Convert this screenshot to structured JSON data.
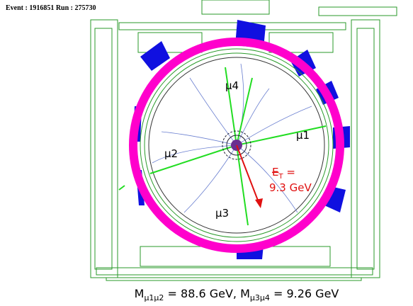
{
  "header": {
    "event": "Event : 1916851  Run : 275730"
  },
  "labels": {
    "mu1": "μ1",
    "mu2": "μ2",
    "mu3": "μ3",
    "mu4": "μ4"
  },
  "met": {
    "symbol": "E",
    "sub": "T",
    "eq": " =",
    "value": "9.3 GeV"
  },
  "caption": {
    "m1": "M",
    "sub1": "μ1μ2",
    "mid": " = 88.6 GeV, M",
    "sub2": "μ3μ4",
    "end": " = 9.26 GeV"
  }
}
